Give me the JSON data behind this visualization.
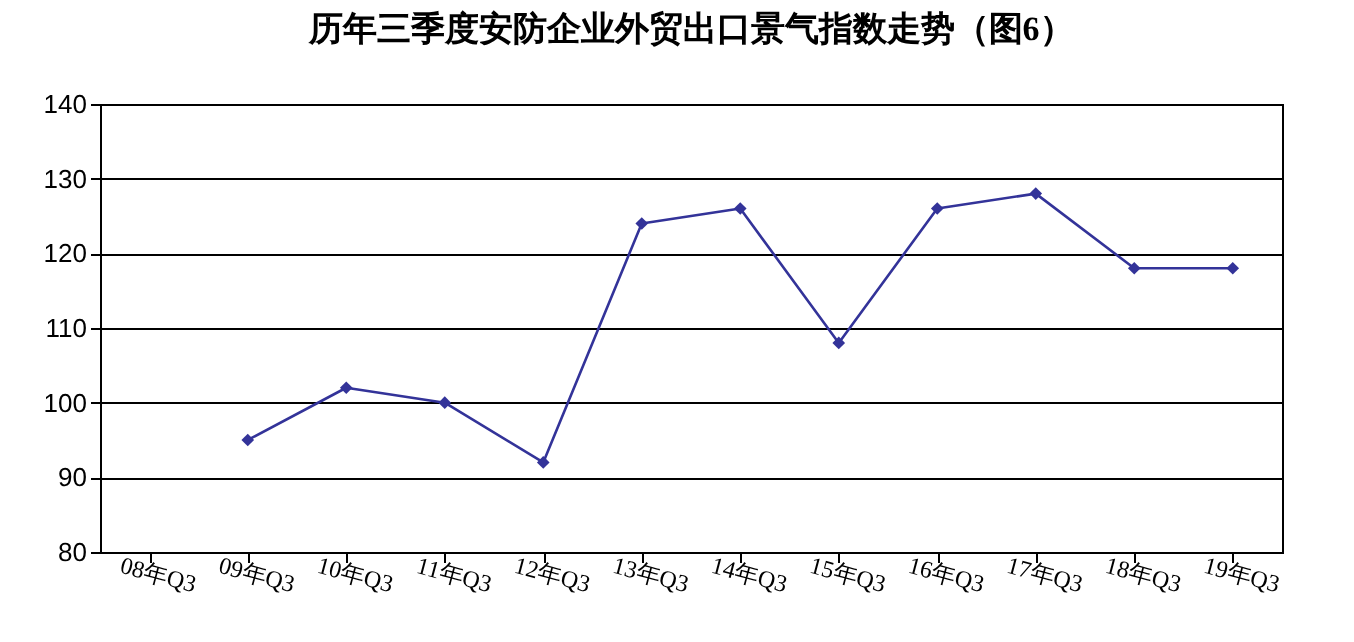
{
  "chart_data": {
    "type": "line",
    "title": "历年三季度安防企业外贸出口景气指数走势（图6）",
    "categories": [
      "08年Q3",
      "09年Q3",
      "10年Q3",
      "11年Q3",
      "12年Q3",
      "13年Q3",
      "14年Q3",
      "15年Q3",
      "16年Q3",
      "17年Q3",
      "18年Q3",
      "19年Q3"
    ],
    "series": [
      {
        "color": "#333399",
        "values": [
          null,
          95,
          102,
          100,
          92,
          124,
          126,
          108,
          126,
          128,
          118,
          118
        ]
      }
    ],
    "ylim": [
      80,
      140
    ],
    "yticks": [
      80,
      90,
      100,
      110,
      120,
      130,
      140
    ],
    "grid": "y",
    "marker": "diamond",
    "line_style": "solid",
    "legend": false
  }
}
